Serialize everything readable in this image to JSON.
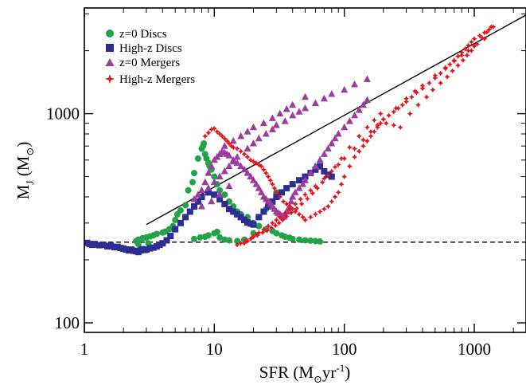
{
  "chart_data": {
    "type": "scatter",
    "xscale": "log",
    "yscale": "log",
    "xlim": [
      1,
      2500
    ],
    "ylim": [
      90,
      3200
    ],
    "xticks": [
      {
        "value": 1,
        "label": "1"
      },
      {
        "value": 10,
        "label": "10"
      },
      {
        "value": 100,
        "label": "100"
      },
      {
        "value": 1000,
        "label": "1000"
      }
    ],
    "yticks": [
      {
        "value": 100,
        "label": "100"
      },
      {
        "value": 1000,
        "label": "1000"
      }
    ],
    "xlabel": {
      "main": "SFR (M",
      "sub": "⊙",
      "mid": "yr",
      "sup": "-1",
      "end": ")"
    },
    "ylabel": {
      "main": "M",
      "sub": "J",
      "mid": " (M",
      "sub2": "⊙",
      "end": ")"
    },
    "legend": {
      "position": "top-left",
      "entries": [
        {
          "label": "z=0 Discs",
          "marker": "circle",
          "color": "#22a34a"
        },
        {
          "label": "High-z Discs",
          "marker": "square",
          "color": "#2e2e92"
        },
        {
          "label": "z=0 Mergers",
          "marker": "triangle",
          "color": "#9b3c9e"
        },
        {
          "label": "High-z Mergers",
          "marker": "star",
          "color": "#e8141c"
        }
      ]
    },
    "reference_lines": [
      {
        "style": "solid",
        "color": "#000000",
        "x": [
          3,
          2500
        ],
        "y": [
          295,
          2960
        ]
      },
      {
        "style": "dashed",
        "color": "#000000",
        "x": [
          1,
          2500
        ],
        "y": [
          243,
          243
        ]
      }
    ],
    "series": [
      {
        "name": "z=0 Discs",
        "marker": "circle",
        "color": "#22a34a",
        "x": [
          2.5,
          2.6,
          2.8,
          3.0,
          3.2,
          3.4,
          3.6,
          4.0,
          4.2,
          4.5,
          4.8,
          5.0,
          5.2,
          5.5,
          6.0,
          6.3,
          6.8,
          7.0,
          7.5,
          8.0,
          8.3,
          8.5,
          9.0,
          9.5,
          10.0,
          10.5,
          11,
          12,
          13,
          14,
          15,
          16,
          18,
          20,
          22,
          25,
          28,
          30,
          33,
          35,
          38,
          40,
          45,
          50,
          55,
          60,
          65,
          7.0,
          7.8,
          8.5,
          9.0,
          10.0,
          10.5,
          11.0,
          12.0,
          13.0,
          15.0,
          17.0,
          20.0,
          22.0,
          25.0,
          30.0,
          2.6,
          3.1,
          8.2,
          8.7,
          9.2
        ],
        "y": [
          246,
          250,
          254,
          256,
          259,
          262,
          266,
          270,
          273,
          280,
          290,
          310,
          330,
          345,
          365,
          430,
          470,
          520,
          610,
          680,
          720,
          640,
          580,
          540,
          500,
          460,
          430,
          410,
          380,
          360,
          340,
          330,
          320,
          300,
          290,
          280,
          275,
          268,
          262,
          258,
          255,
          252,
          250,
          248,
          247,
          246,
          245,
          252,
          256,
          258,
          262,
          268,
          272,
          256,
          250,
          248,
          246,
          250,
          268,
          290,
          350,
          420,
          238,
          240,
          700,
          610,
          560
        ]
      },
      {
        "name": "High-z Discs",
        "marker": "square",
        "color": "#2e2e92",
        "x": [
          1.05,
          1.1,
          1.15,
          1.2,
          1.3,
          1.4,
          1.5,
          1.6,
          1.7,
          1.8,
          1.9,
          2.0,
          2.1,
          2.2,
          2.3,
          2.4,
          2.5,
          2.6,
          2.7,
          2.8,
          2.9,
          3.0,
          3.2,
          3.4,
          3.6,
          3.8,
          4.0,
          4.3,
          4.6,
          5.0,
          5.5,
          6.0,
          6.5,
          7.0,
          7.5,
          8.0,
          9.0,
          10,
          11,
          12,
          13,
          14,
          15,
          16,
          17,
          18,
          19,
          20,
          22,
          24,
          26,
          28,
          30,
          33,
          36,
          40,
          45,
          50,
          55,
          60,
          65,
          70,
          75,
          80
        ],
        "y": [
          241,
          238,
          236,
          238,
          235,
          236,
          232,
          234,
          230,
          231,
          228,
          226,
          224,
          222,
          224,
          221,
          220,
          218,
          222,
          225,
          223,
          224,
          227,
          229,
          232,
          236,
          240,
          248,
          260,
          280,
          300,
          320,
          340,
          360,
          380,
          400,
          420,
          410,
          390,
          370,
          350,
          340,
          330,
          320,
          310,
          302,
          298,
          295,
          320,
          340,
          360,
          380,
          400,
          420,
          440,
          460,
          480,
          500,
          520,
          540,
          560,
          530,
          510,
          500
        ]
      },
      {
        "name": "z=0 Mergers",
        "marker": "triangle",
        "color": "#9b3c9e",
        "x": [
          7.0,
          7.5,
          8.0,
          8.5,
          9.0,
          9.5,
          10.0,
          10.5,
          11.0,
          11.5,
          12.0,
          12.5,
          13.0,
          14.0,
          15.0,
          16.0,
          17.0,
          18.0,
          19.0,
          20.0,
          21.0,
          22.0,
          23.0,
          24.0,
          25.0,
          26.0,
          27.0,
          28.0,
          29.0,
          30.0,
          31.0,
          32.0,
          33.0,
          34.0,
          35.0,
          36.0,
          37.0,
          38.0,
          39.0,
          40.0,
          42.0,
          45.0,
          48.0,
          50.0,
          55.0,
          60.0,
          65.0,
          70.0,
          75.0,
          80.0,
          85.0,
          90.0,
          100.0,
          110.0,
          120.0,
          130.0,
          140.0,
          150.0,
          9.0,
          10.0,
          11.0,
          12.0,
          13.0,
          14.0,
          15.0,
          18.0,
          20.0,
          22.0,
          25.0,
          28.0,
          30.0,
          35.0,
          40.0,
          45.0,
          50.0,
          60.0,
          70.0,
          80.0,
          100.0,
          120.0,
          150.0,
          12.0,
          14.0,
          16.0,
          18.0,
          20.0,
          24.0,
          28.0,
          32.0,
          36.0,
          40.0,
          50.0,
          8.0,
          9.5,
          11.0,
          13.0
        ],
        "y": [
          390,
          410,
          430,
          470,
          520,
          560,
          600,
          620,
          640,
          660,
          650,
          640,
          630,
          600,
          580,
          560,
          540,
          520,
          500,
          480,
          460,
          440,
          420,
          400,
          390,
          380,
          370,
          360,
          350,
          340,
          335,
          330,
          325,
          320,
          330,
          340,
          350,
          360,
          380,
          400,
          420,
          440,
          460,
          480,
          520,
          560,
          600,
          640,
          680,
          720,
          760,
          800,
          860,
          920,
          980,
          1040,
          1100,
          1160,
          440,
          470,
          500,
          530,
          560,
          590,
          620,
          680,
          720,
          760,
          800,
          840,
          880,
          920,
          980,
          1020,
          1060,
          1120,
          1180,
          1240,
          1300,
          1380,
          1460,
          700,
          740,
          780,
          820,
          860,
          900,
          950,
          1000,
          1050,
          1100,
          1200,
          360,
          380,
          410,
          450
        ]
      },
      {
        "name": "High-z Mergers",
        "marker": "star",
        "color": "#e8141c",
        "x": [
          8.5,
          9.0,
          9.5,
          10.0,
          10.5,
          11.0,
          11.5,
          12.0,
          12.5,
          13.0,
          13.5,
          14.0,
          15.0,
          16.0,
          17.0,
          18.0,
          19.0,
          20.0,
          21.0,
          22.0,
          23.0,
          24.0,
          25.0,
          26.0,
          27.0,
          28.0,
          29.0,
          30.0,
          32.0,
          34.0,
          36.0,
          38.0,
          40.0,
          42.0,
          45.0,
          48.0,
          50.0,
          55.0,
          60.0,
          65.0,
          70.0,
          75.0,
          80.0,
          85.0,
          90.0,
          95.0,
          100.0,
          110.0,
          120.0,
          130.0,
          140.0,
          150.0,
          160.0,
          170.0,
          180.0,
          190.0,
          200.0,
          220.0,
          240.0,
          260.0,
          280.0,
          300.0,
          330.0,
          360.0,
          400.0,
          450.0,
          500.0,
          550.0,
          600.0,
          650.0,
          700.0,
          750.0,
          800.0,
          850.0,
          900.0,
          950.0,
          1000.0,
          1100.0,
          1200.0,
          1300.0,
          1400.0,
          17.0,
          18.0,
          19.0,
          20.0,
          21.0,
          22.0,
          24.0,
          26.0,
          28.0,
          30.0,
          32.0,
          35.0,
          38.0,
          42.0,
          46.0,
          50.0,
          55.0,
          60.0,
          70.0,
          80.0,
          90.0,
          100.0,
          120.0,
          140.0,
          160.0,
          180.0,
          200.0,
          250.0,
          300.0,
          350.0,
          400.0,
          500.0,
          600.0,
          700.0,
          800.0,
          900.0,
          1000.0,
          1200.0,
          15.0,
          16.0,
          17.5,
          19.5,
          21.5,
          23.5,
          25.5,
          27.5,
          29.5,
          31.5,
          33.5,
          36.0,
          39.0,
          43.0,
          47.0,
          52.0,
          57.0,
          62.0,
          68.0,
          75.0,
          85.0,
          95.0,
          110.0,
          130.0,
          150.0,
          170.0,
          190.0,
          210.0,
          240.0,
          270.0,
          320.0,
          370.0,
          430.0,
          480.0,
          550.0,
          620.0,
          680.0,
          750.0,
          820.0,
          880.0,
          950.0,
          1050.0,
          1150.0,
          1250.0,
          1350.0
        ],
        "y": [
          780,
          810,
          840,
          850,
          820,
          800,
          780,
          760,
          740,
          720,
          700,
          690,
          680,
          660,
          640,
          620,
          600,
          590,
          580,
          570,
          560,
          540,
          520,
          500,
          480,
          460,
          440,
          420,
          400,
          380,
          370,
          360,
          350,
          340,
          330,
          320,
          310,
          320,
          330,
          340,
          350,
          360,
          380,
          400,
          420,
          460,
          500,
          560,
          620,
          660,
          700,
          740,
          780,
          820,
          860,
          900,
          940,
          980,
          1020,
          1060,
          1100,
          1140,
          1200,
          1260,
          1320,
          1400,
          1480,
          1560,
          1640,
          1720,
          1800,
          1880,
          1960,
          2040,
          2120,
          2200,
          2280,
          2360,
          2440,
          2520,
          2600,
          240,
          246,
          252,
          258,
          264,
          270,
          280,
          290,
          300,
          310,
          320,
          335,
          350,
          370,
          390,
          410,
          430,
          450,
          490,
          530,
          570,
          610,
          680,
          750,
          820,
          880,
          940,
          1060,
          1180,
          1280,
          1360,
          1520,
          1660,
          1780,
          1900,
          2000,
          2100,
          2280,
          236,
          240,
          248,
          256,
          262,
          270,
          276,
          284,
          292,
          300,
          310,
          322,
          336,
          352,
          370,
          392,
          416,
          440,
          470,
          506,
          556,
          610,
          690,
          780,
          860,
          930,
          1000,
          900,
          880,
          860,
          1000,
          1100,
          1200,
          1300,
          1400,
          1500,
          1600,
          1700,
          1800,
          1900,
          2000,
          2150,
          2300,
          2450,
          2600
        ]
      }
    ]
  }
}
